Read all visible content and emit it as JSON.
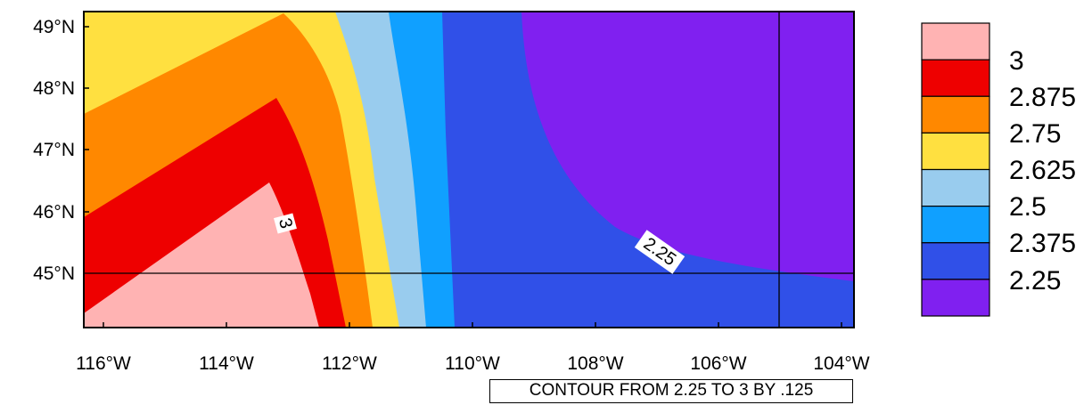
{
  "map": {
    "lon_labels": [
      "116°W",
      "114°W",
      "112°W",
      "110°W",
      "108°W",
      "106°W",
      "104°W"
    ],
    "lat_labels": [
      "49°N",
      "48°N",
      "47°N",
      "46°N",
      "45°N"
    ],
    "contour_labels": [
      "3",
      "2.25"
    ],
    "info_text": "CONTOUR FROM 2.25 TO 3 BY .125",
    "colors": {
      "c3": "#FFB3B3",
      "c2875": "#EE0000",
      "c275": "#FF8800",
      "c2625": "#FFE040",
      "c25": "#99CCEE",
      "c2375": "#10A0FF",
      "c225": "#3050E8",
      "below": "#8020F0"
    }
  },
  "legend": {
    "labels": [
      "3",
      "2.875",
      "2.75",
      "2.625",
      "2.5",
      "2.375",
      "2.25"
    ],
    "colors": [
      "#FFB3B3",
      "#EE0000",
      "#FF8800",
      "#FFE040",
      "#99CCEE",
      "#10A0FF",
      "#3050E8",
      "#8020F0"
    ]
  }
}
